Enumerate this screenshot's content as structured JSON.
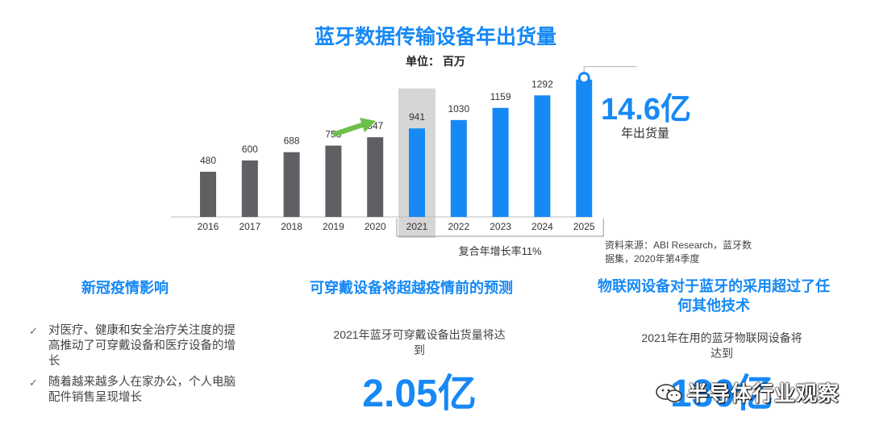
{
  "title": "蓝牙数据传输设备年出货量",
  "unit": "单位： 百万",
  "chart_data": {
    "type": "bar",
    "categories": [
      "2016",
      "2017",
      "2018",
      "2019",
      "2020",
      "2021",
      "2022",
      "2023",
      "2024",
      "2025"
    ],
    "values": [
      480,
      600,
      688,
      758,
      847,
      941,
      1030,
      1159,
      1292,
      1460
    ],
    "value_labels": [
      "480",
      "600",
      "688",
      "758",
      "847",
      "941",
      "1030",
      "1159",
      "1292",
      ""
    ],
    "historical_color": "#5f6063",
    "forecast_color": "#1689f5",
    "forecast_start_index": 5,
    "highlight_index": 5,
    "highlight_color": "#d6d6d6",
    "ylim": [
      0,
      1500
    ],
    "grid": false,
    "cagr_label": "复合年增长率11%",
    "arrow_color": "#6cc04a"
  },
  "callout": {
    "value": "14.6亿",
    "label": "年出货量"
  },
  "source": "资料来源：ABI Research，蓝牙数据集，2020年第4季度",
  "sections": [
    {
      "heading": "新冠疫情影响",
      "bullets": [
        "对医疗、健康和安全治疗关注度的提高推动了可穿戴设备和医疗设备的增长",
        "随着越来越多人在家办公，个人电脑配件销售呈现增长"
      ],
      "check": "✓"
    },
    {
      "heading": "可穿戴设备将超越疫情前的预测",
      "desc": "2021年蓝牙可穿戴设备出货量将达到",
      "value": "2.05亿"
    },
    {
      "heading": "物联网设备对于蓝牙的采用超过了任何其他技术",
      "desc": "2021年在用的蓝牙物联网设备将达到",
      "value": "130亿"
    }
  ],
  "watermark": "半导体行业观察",
  "colors": {
    "accent": "#1689f5",
    "bar_gray": "#5f6063"
  }
}
